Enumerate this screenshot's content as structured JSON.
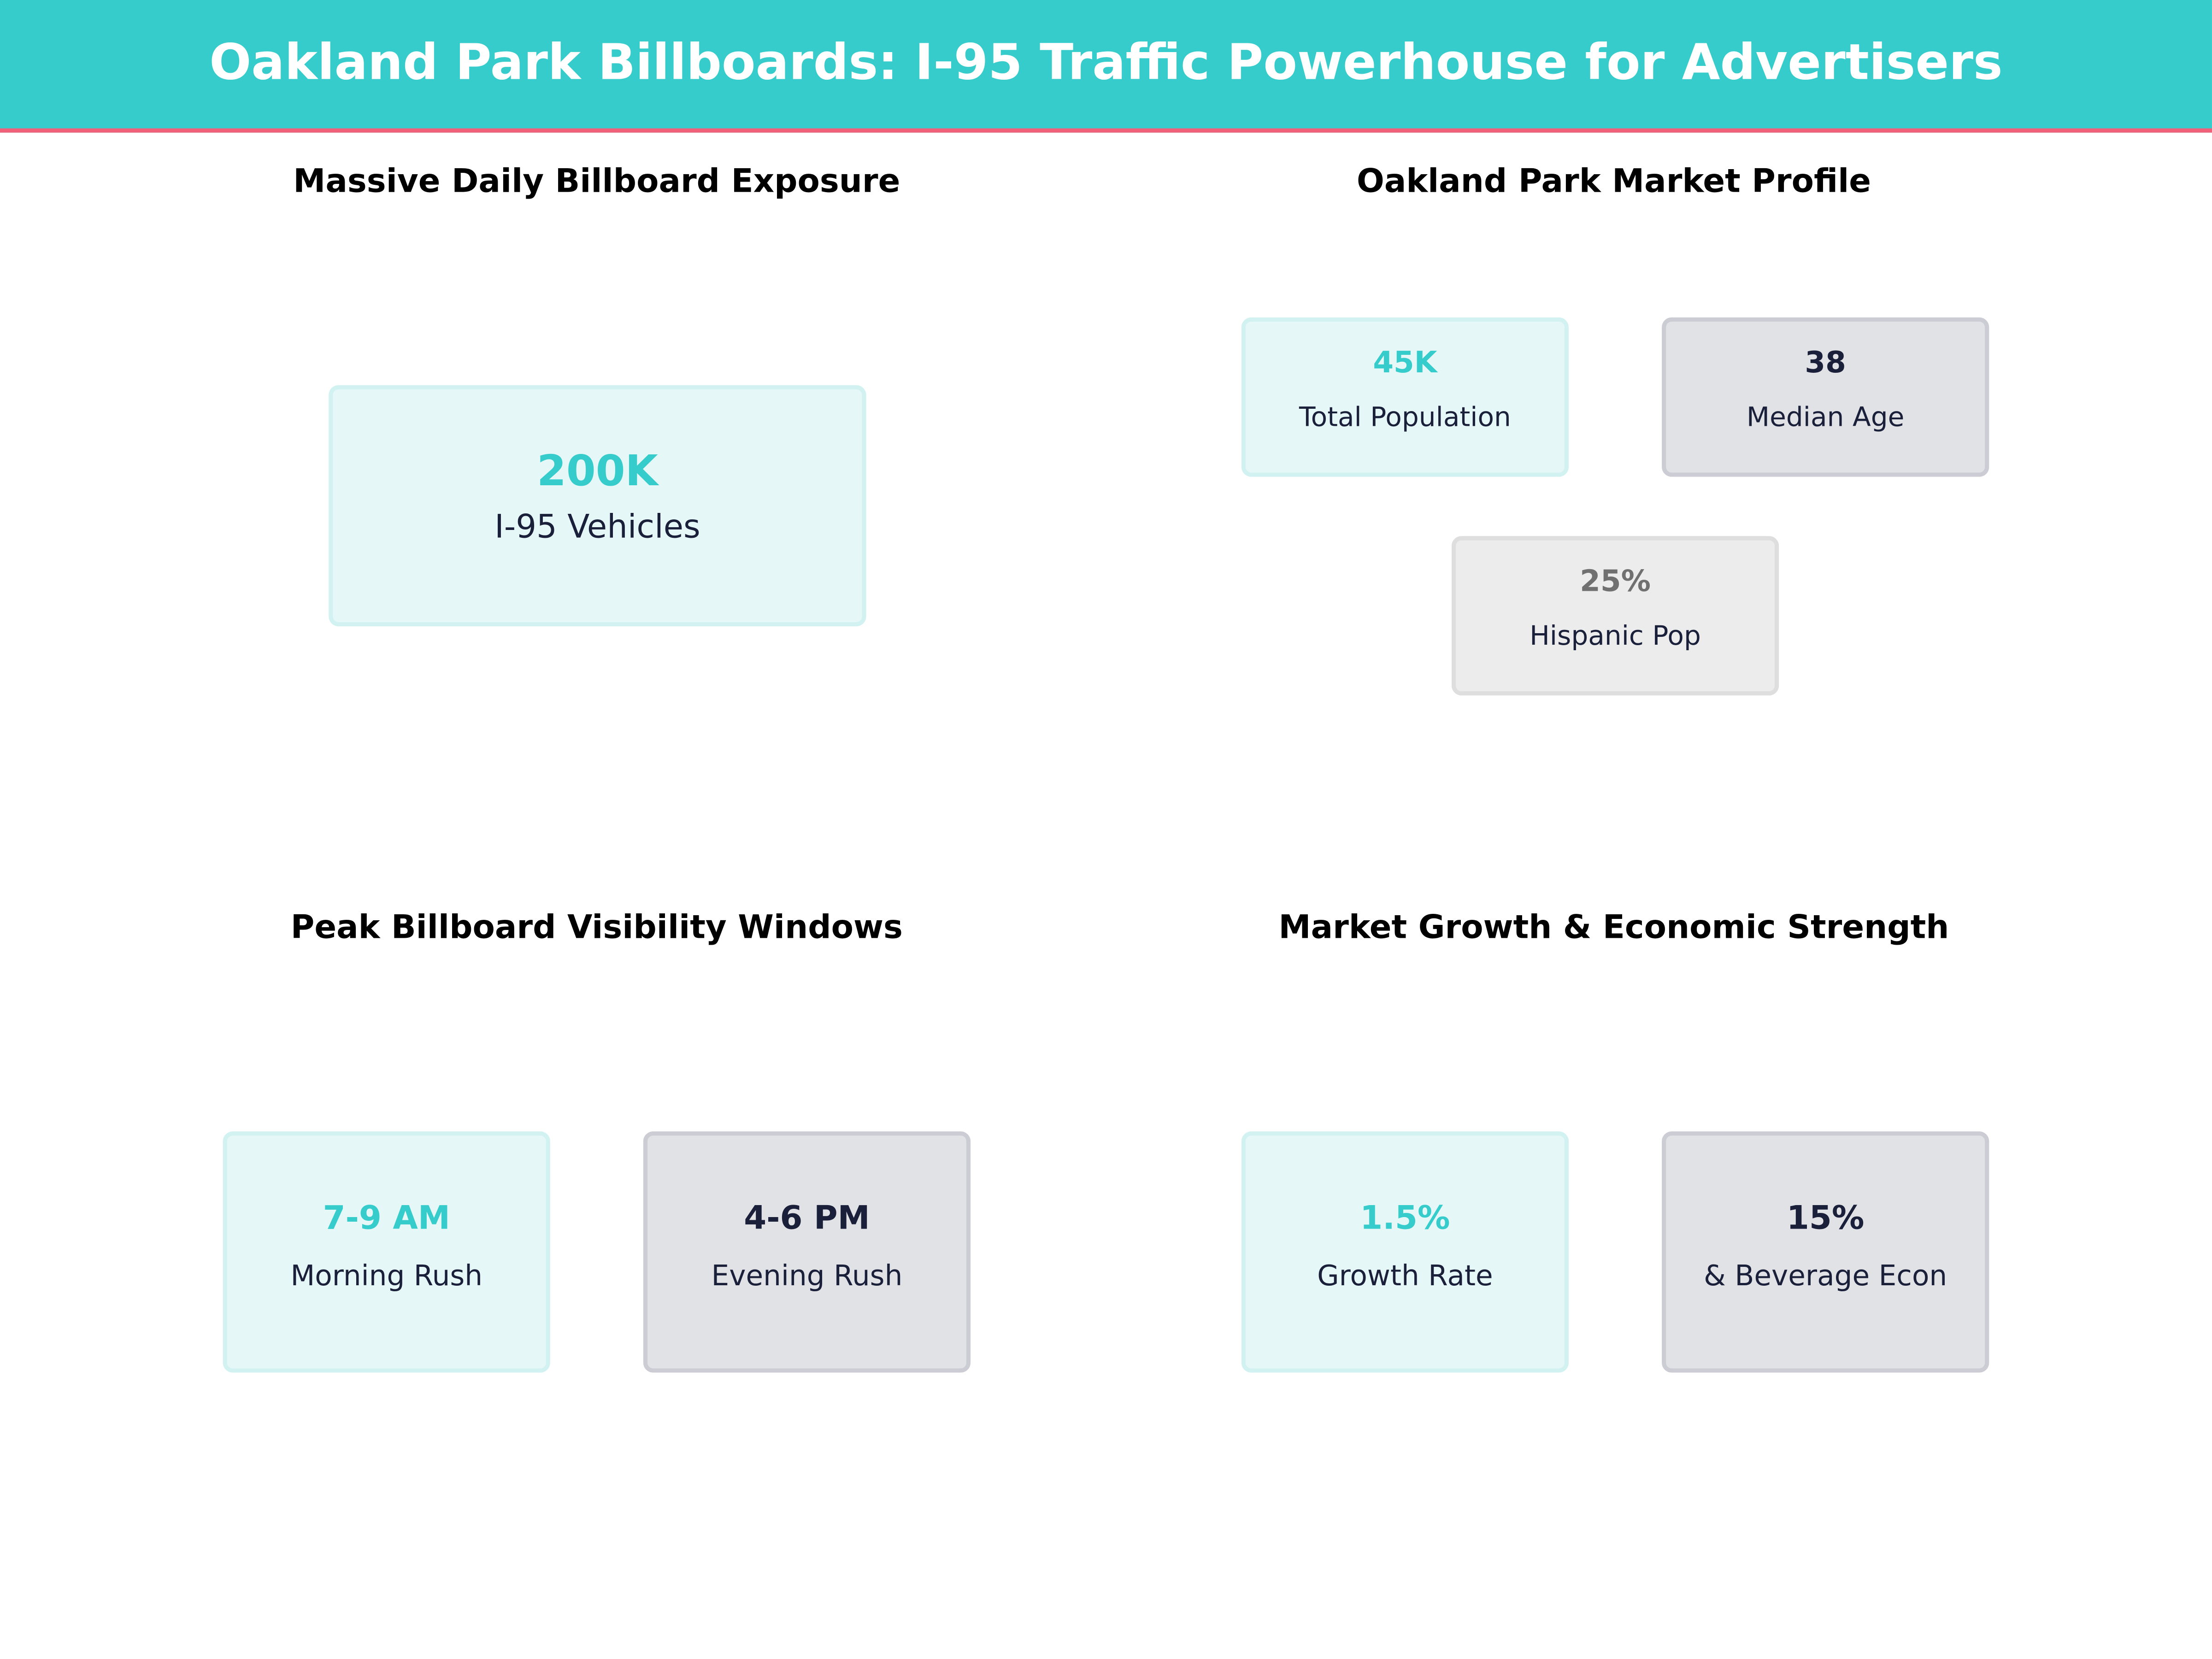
{
  "header": {
    "title": "Oakland Park Billboards: I-95 Traffic Powerhouse for Advertisers"
  },
  "colors": {
    "accent": "#36CCCC",
    "header_underline": "#F06078",
    "dark": "#1A1F3A",
    "muted": "#707070"
  },
  "sections": {
    "exposure": {
      "title": "Massive Daily Billboard Exposure",
      "cards": [
        {
          "value": "200K",
          "label": "I-95 Vehicles"
        }
      ]
    },
    "market": {
      "title": "Oakland Park Market Profile",
      "cards": [
        {
          "value": "45K",
          "label": "Total Population"
        },
        {
          "value": "38",
          "label": "Median Age"
        },
        {
          "value": "25%",
          "label": "Hispanic Pop"
        }
      ]
    },
    "visibility": {
      "title": "Peak Billboard Visibility Windows",
      "cards": [
        {
          "value": "7-9 AM",
          "label": "Morning Rush"
        },
        {
          "value": "4-6 PM",
          "label": "Evening Rush"
        }
      ]
    },
    "growth": {
      "title": "Market Growth & Economic Strength",
      "cards": [
        {
          "value": "1.5%",
          "label": "Growth Rate"
        },
        {
          "value": "15%",
          "label": "& Beverage Econ"
        }
      ]
    }
  }
}
